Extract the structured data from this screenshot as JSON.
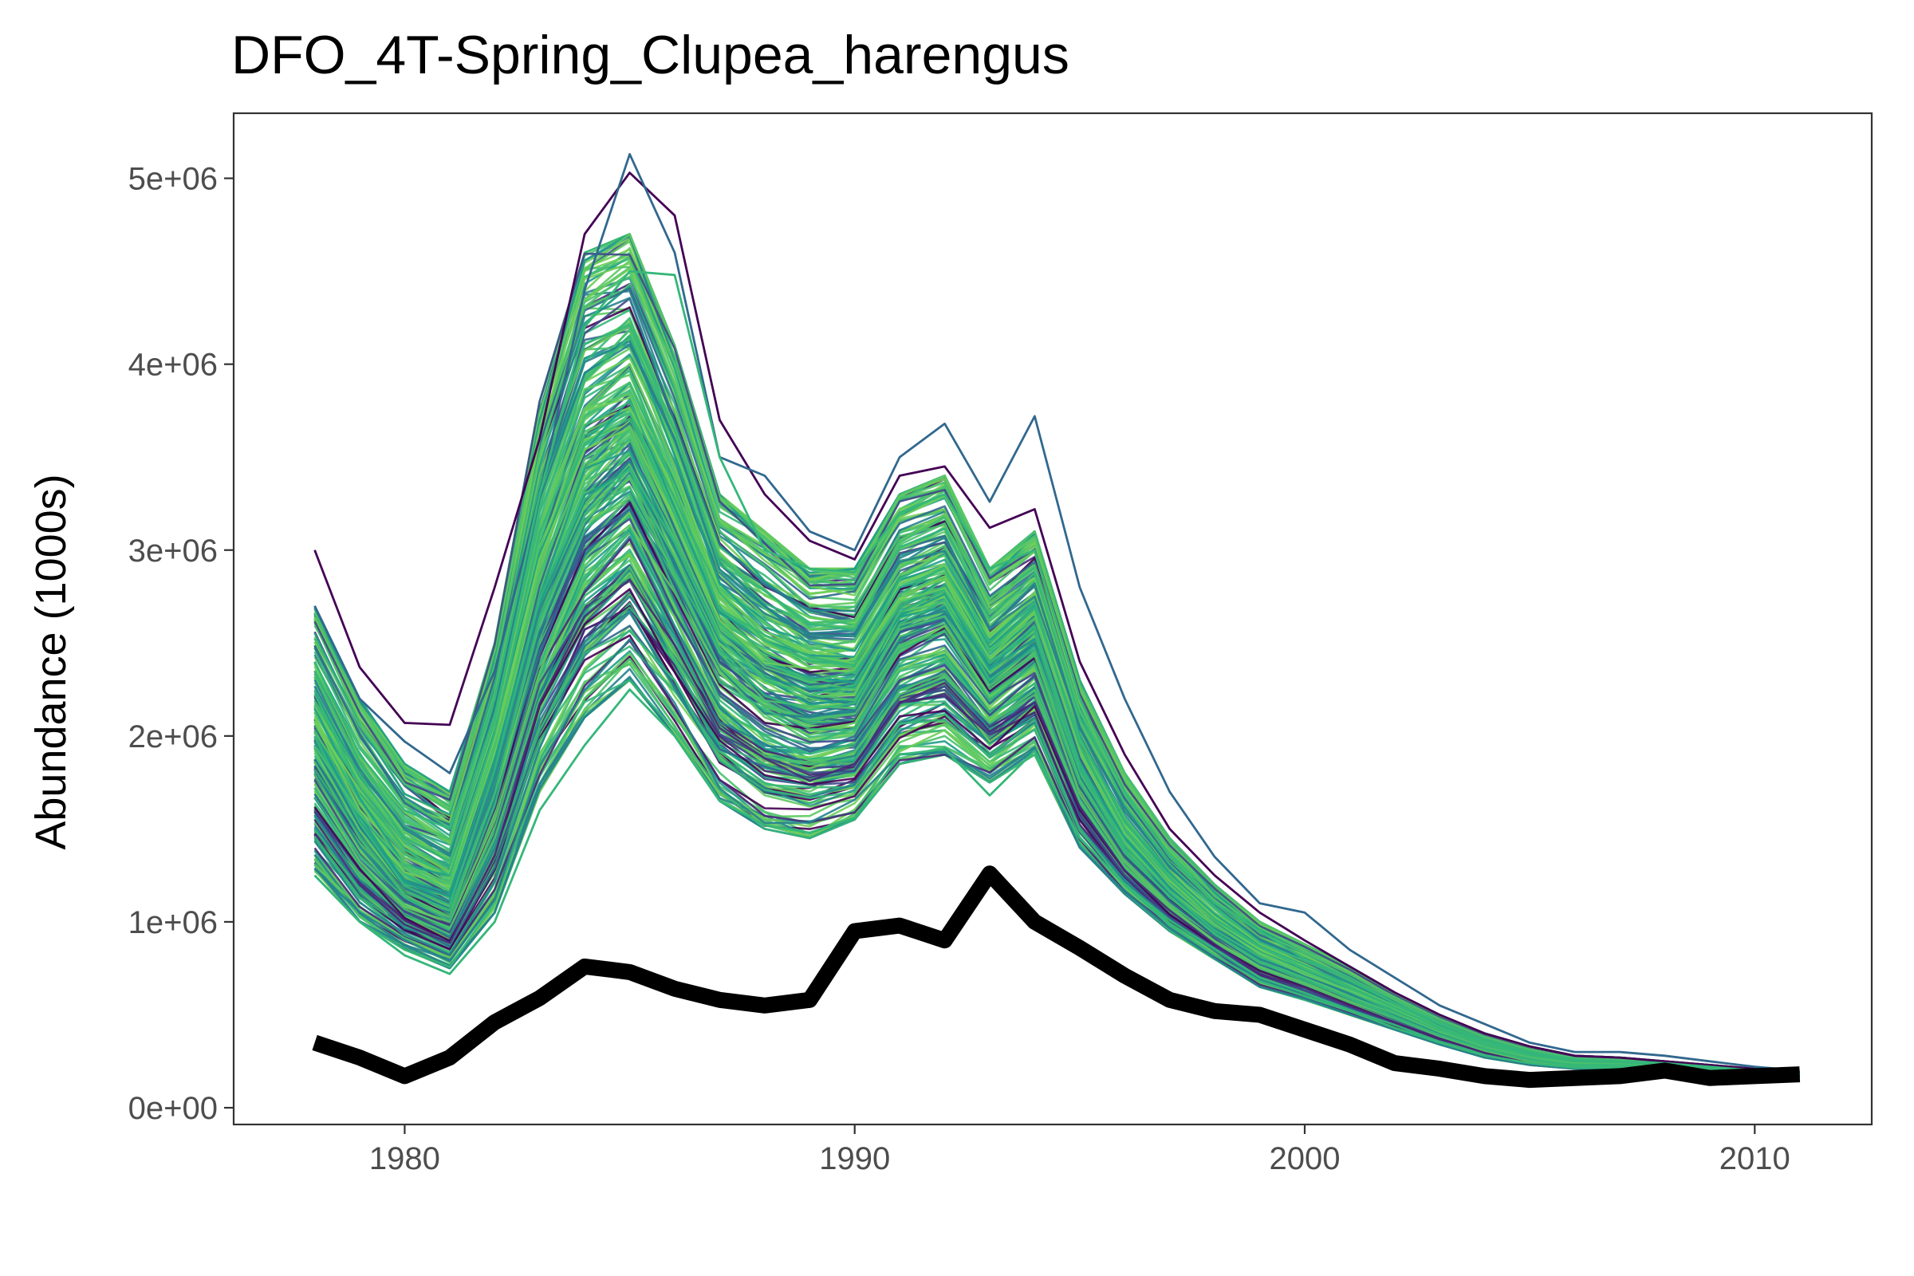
{
  "chart_data": {
    "type": "line",
    "title": "DFO_4T-Spring_Clupea_harengus",
    "xlabel": "",
    "ylabel": "Abundance (1000s)",
    "xlim": [
      1976.2,
      2012.6
    ],
    "ylim": [
      -90000,
      5350000
    ],
    "x_ticks": [
      1980,
      1990,
      2000,
      2010
    ],
    "x_tick_labels": [
      "1980",
      "1990",
      "2000",
      "2010"
    ],
    "y_ticks": [
      0,
      1000000,
      2000000,
      3000000,
      4000000,
      5000000
    ],
    "y_tick_labels": [
      "0e+00",
      "1e+06",
      "2e+06",
      "3e+06",
      "4e+06",
      "5e+06"
    ],
    "grid": false,
    "legend": "none",
    "x": [
      1978,
      1979,
      1980,
      1981,
      1982,
      1983,
      1984,
      1985,
      1986,
      1987,
      1988,
      1989,
      1990,
      1991,
      1992,
      1993,
      1994,
      1995,
      1996,
      1997,
      1998,
      1999,
      2000,
      2001,
      2002,
      2003,
      2004,
      2005,
      2006,
      2007,
      2008,
      2009,
      2010,
      2011
    ],
    "observed": {
      "color": "#000000",
      "values": [
        350000,
        270000,
        170000,
        270000,
        460000,
        590000,
        760000,
        730000,
        640000,
        580000,
        550000,
        580000,
        950000,
        980000,
        900000,
        1260000,
        1000000,
        860000,
        710000,
        580000,
        520000,
        500000,
        420000,
        340000,
        240000,
        210000,
        170000,
        150000,
        160000,
        170000,
        200000,
        160000,
        170000,
        180000
      ]
    },
    "simulations": {
      "count": 260,
      "palette": [
        "#440154",
        "#482878",
        "#3e4989",
        "#31688e",
        "#26828e",
        "#1f9e89",
        "#35b779",
        "#6ece58",
        "#4ac16d",
        "#5ec962"
      ],
      "median": [
        1900000,
        1500000,
        1200000,
        1100000,
        1800000,
        2700000,
        3300000,
        3500000,
        3000000,
        2500000,
        2300000,
        2200000,
        2200000,
        2600000,
        2700000,
        2300000,
        2500000,
        1800000,
        1400000,
        1150000,
        950000,
        800000,
        700000,
        600000,
        500000,
        400000,
        320000,
        260000,
        230000,
        230000,
        220000,
        210000,
        190000,
        180000
      ],
      "lower": [
        1250000,
        1000000,
        850000,
        750000,
        1050000,
        1700000,
        2100000,
        2300000,
        2000000,
        1650000,
        1500000,
        1450000,
        1550000,
        1850000,
        1900000,
        1750000,
        1900000,
        1400000,
        1150000,
        950000,
        800000,
        650000,
        580000,
        500000,
        420000,
        340000,
        270000,
        230000,
        210000,
        210000,
        200000,
        190000,
        180000,
        170000
      ],
      "upper": [
        2700000,
        2200000,
        1850000,
        1700000,
        2500000,
        3800000,
        4600000,
        4700000,
        4100000,
        3300000,
        3100000,
        2900000,
        2900000,
        3300000,
        3400000,
        2900000,
        3100000,
        2300000,
        1800000,
        1450000,
        1200000,
        1000000,
        880000,
        760000,
        620000,
        500000,
        400000,
        330000,
        280000,
        270000,
        250000,
        230000,
        210000,
        190000
      ],
      "outlier_series": [
        {
          "color": "#440154",
          "values": [
            3000000,
            2370000,
            2070000,
            2060000,
            2800000,
            3600000,
            4700000,
            5030000,
            4800000,
            3700000,
            3300000,
            3050000,
            2950000,
            3400000,
            3450000,
            3120000,
            3220000,
            2400000,
            1900000,
            1500000,
            1250000,
            1050000,
            900000,
            760000,
            620000,
            500000,
            400000,
            330000,
            280000,
            270000,
            250000,
            230000,
            210000,
            190000
          ]
        },
        {
          "color": "#31688e",
          "values": [
            2700000,
            2200000,
            1970000,
            1800000,
            2350000,
            3300000,
            4400000,
            5130000,
            4600000,
            3500000,
            3400000,
            3100000,
            3000000,
            3500000,
            3680000,
            3260000,
            3720000,
            2800000,
            2200000,
            1700000,
            1350000,
            1100000,
            1050000,
            850000,
            700000,
            550000,
            450000,
            350000,
            300000,
            300000,
            280000,
            250000,
            220000,
            200000
          ]
        },
        {
          "color": "#35b779",
          "values": [
            2400000,
            1900000,
            1600000,
            1500000,
            2200000,
            3300000,
            4200000,
            4500000,
            4480000,
            3500000,
            3000000,
            2900000,
            2880000,
            3200000,
            3300000,
            2900000,
            3000000,
            2200000,
            1700000,
            1350000,
            1100000,
            950000,
            800000,
            700000,
            560000,
            450000,
            360000,
            300000,
            260000,
            250000,
            240000,
            220000,
            200000,
            185000
          ]
        },
        {
          "color": "#35b779",
          "values": [
            1250000,
            1000000,
            820000,
            720000,
            1000000,
            1600000,
            1950000,
            2250000,
            2000000,
            1650000,
            1520000,
            1480000,
            1560000,
            1900000,
            1930000,
            1680000,
            1920000,
            1450000,
            1200000,
            980000,
            820000,
            680000,
            600000,
            520000,
            430000,
            350000,
            280000,
            240000,
            215000,
            215000,
            205000,
            195000,
            185000,
            175000
          ]
        }
      ]
    }
  }
}
